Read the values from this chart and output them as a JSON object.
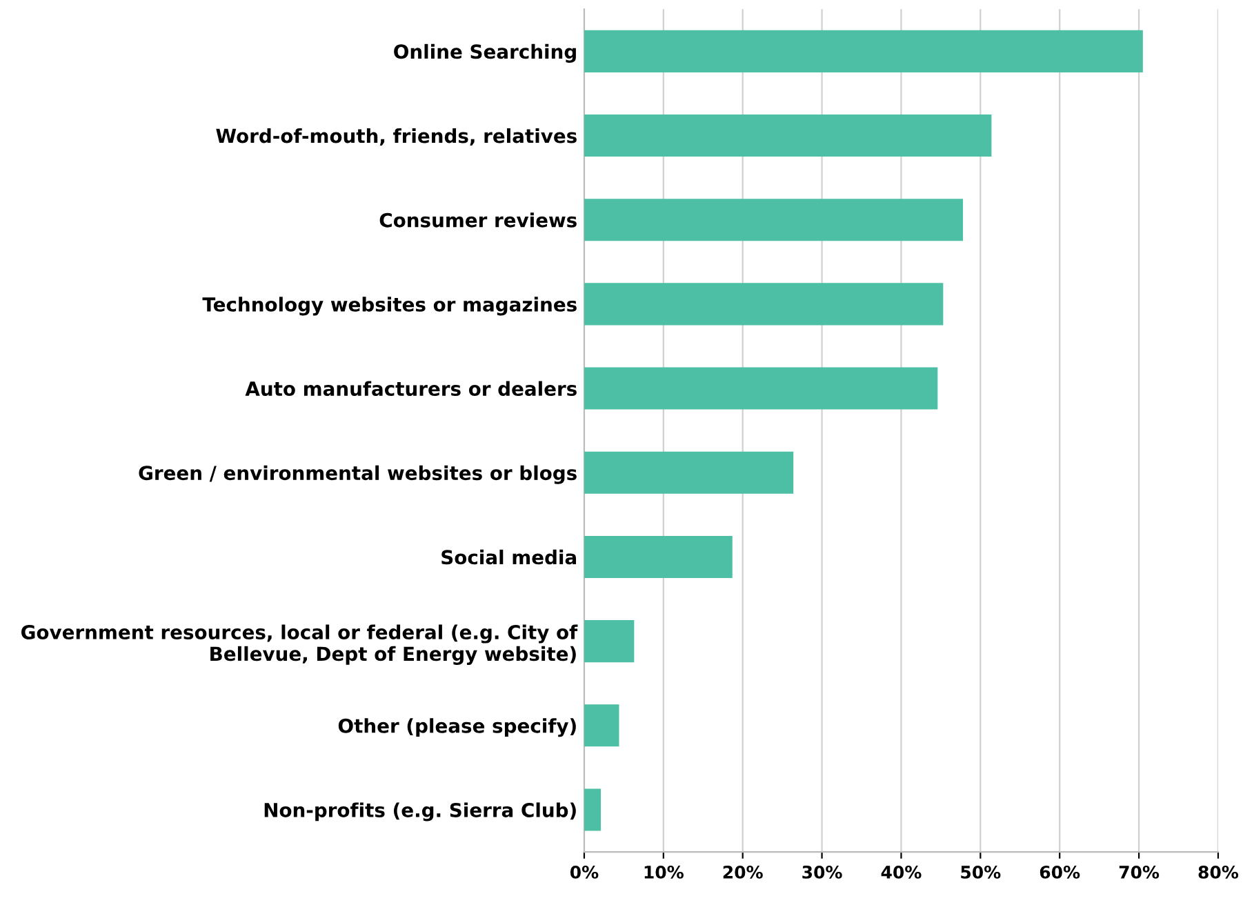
{
  "chart_data": {
    "type": "bar",
    "orientation": "horizontal",
    "categories": [
      "Online Searching",
      "Word-of-mouth, friends, relatives",
      "Consumer reviews",
      "Technology websites or magazines",
      "Auto manufacturers or dealers",
      "Green / environmental websites or blogs",
      "Social media",
      "Government resources, local or federal (e.g. City of Bellevue, Dept of Energy website)",
      "Other (please specify)",
      "Non-profits (e.g. Sierra Club)"
    ],
    "values": [
      70.5,
      51.4,
      47.8,
      45.3,
      44.6,
      26.4,
      18.7,
      6.3,
      4.4,
      2.1
    ],
    "color": "#4dbfa5",
    "xlim": [
      0,
      80
    ],
    "xticks": [
      {
        "value": 0,
        "label": "0%"
      },
      {
        "value": 10,
        "label": "10%"
      },
      {
        "value": 20,
        "label": "20%"
      },
      {
        "value": 30,
        "label": "30%"
      },
      {
        "value": 40,
        "label": "40%"
      },
      {
        "value": 50,
        "label": "50%"
      },
      {
        "value": 60,
        "label": "60%"
      },
      {
        "value": 70,
        "label": "70%"
      },
      {
        "value": 80,
        "label": "80%"
      }
    ],
    "grid": "x"
  }
}
